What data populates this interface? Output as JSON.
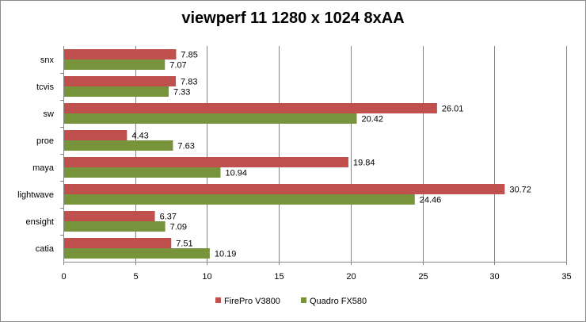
{
  "chart_data": {
    "type": "bar",
    "orientation": "horizontal",
    "title": "viewperf 11 1280 x 1024 8xAA",
    "xlabel": "",
    "ylabel": "",
    "xlim": [
      0,
      35
    ],
    "x_ticks": [
      0,
      5,
      10,
      15,
      20,
      25,
      30,
      35
    ],
    "grid": "vertical major gridlines",
    "legend_position": "bottom",
    "categories": [
      "snx",
      "tcvis",
      "sw",
      "proe",
      "maya",
      "lightwave",
      "ensight",
      "catia"
    ],
    "series": [
      {
        "name": "FirePro V3800",
        "color": "#c0504d",
        "values": [
          7.85,
          7.83,
          26.01,
          4.43,
          19.84,
          30.72,
          6.37,
          7.51
        ]
      },
      {
        "name": "Quadro FX580",
        "color": "#77933c",
        "values": [
          7.07,
          7.33,
          20.42,
          7.63,
          10.94,
          24.46,
          7.09,
          10.19
        ]
      }
    ]
  }
}
